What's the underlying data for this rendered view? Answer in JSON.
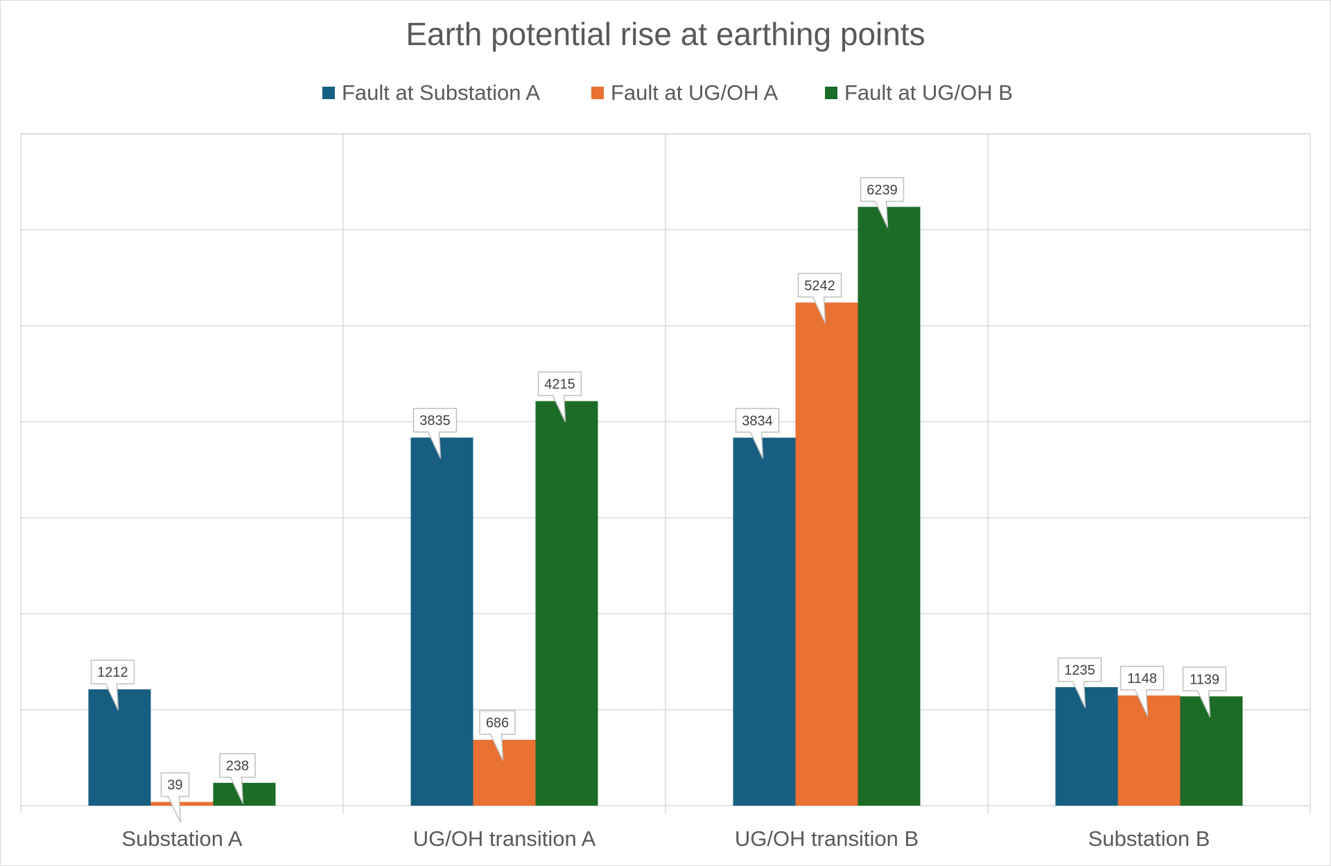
{
  "chart_data": {
    "type": "bar",
    "title": "Earth potential rise at earthing points",
    "xlabel": "",
    "ylabel": "",
    "categories": [
      "Substation A",
      "UG/OH transition A",
      "UG/OH transition B",
      "Substation B"
    ],
    "series": [
      {
        "name": "Fault at Substation A",
        "color": "#175f82",
        "values": [
          1212,
          3835,
          3834,
          1235
        ]
      },
      {
        "name": "Fault at UG/OH A",
        "color": "#e97132",
        "values": [
          39,
          686,
          5242,
          1148
        ]
      },
      {
        "name": "Fault at UG/OH B",
        "color": "#1b6c27",
        "values": [
          238,
          4215,
          6239,
          1139
        ]
      }
    ],
    "ylim": [
      0,
      7000
    ],
    "grid": true,
    "legend": "top",
    "data_labels": "callout"
  }
}
